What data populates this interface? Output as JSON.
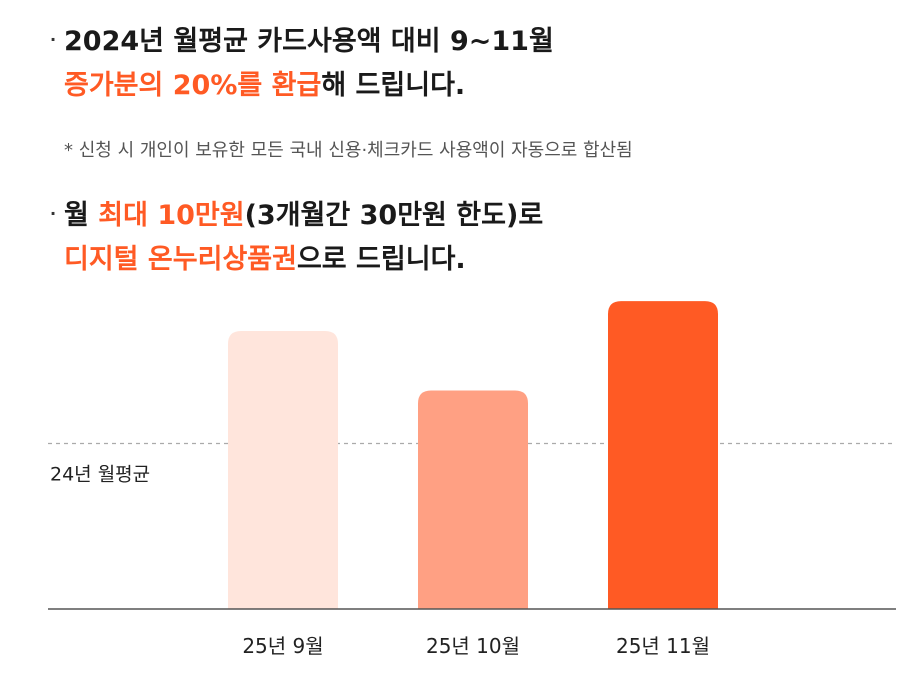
{
  "bullet1": {
    "line1": "2024년 월평균 카드사용액 대비 9~11월",
    "line2_highlight": "증가분의 20%를 환급",
    "line2_rest": "해 드립니다."
  },
  "note": "* 신청 시 개인이 보유한 모든 국내 신용·체크카드 사용액이 자동으로 합산됨",
  "bullet2": {
    "line1_prefix": "월 ",
    "line1_highlight": "최대 10만원",
    "line1_rest": "(3개월간 30만원 한도)로",
    "line2_highlight": "디지털 온누리상품권",
    "line2_rest": "으로 드립니다."
  },
  "chart_data": {
    "type": "bar",
    "categories": [
      "25년 9월",
      "25년 10월",
      "25년 11월"
    ],
    "values": [
      1.34,
      1.16,
      1.43
    ],
    "colors": [
      "#ffe5dc",
      "#ffa083",
      "#ff5a24"
    ],
    "reference_line": {
      "label": "24년 월평균",
      "value": 1.0,
      "style": "dashed"
    },
    "ylim": [
      0.5,
      1.5
    ],
    "grid": false
  },
  "colors": {
    "accent": "#ff5a24",
    "text": "#1a1a1a",
    "muted": "#555555"
  }
}
